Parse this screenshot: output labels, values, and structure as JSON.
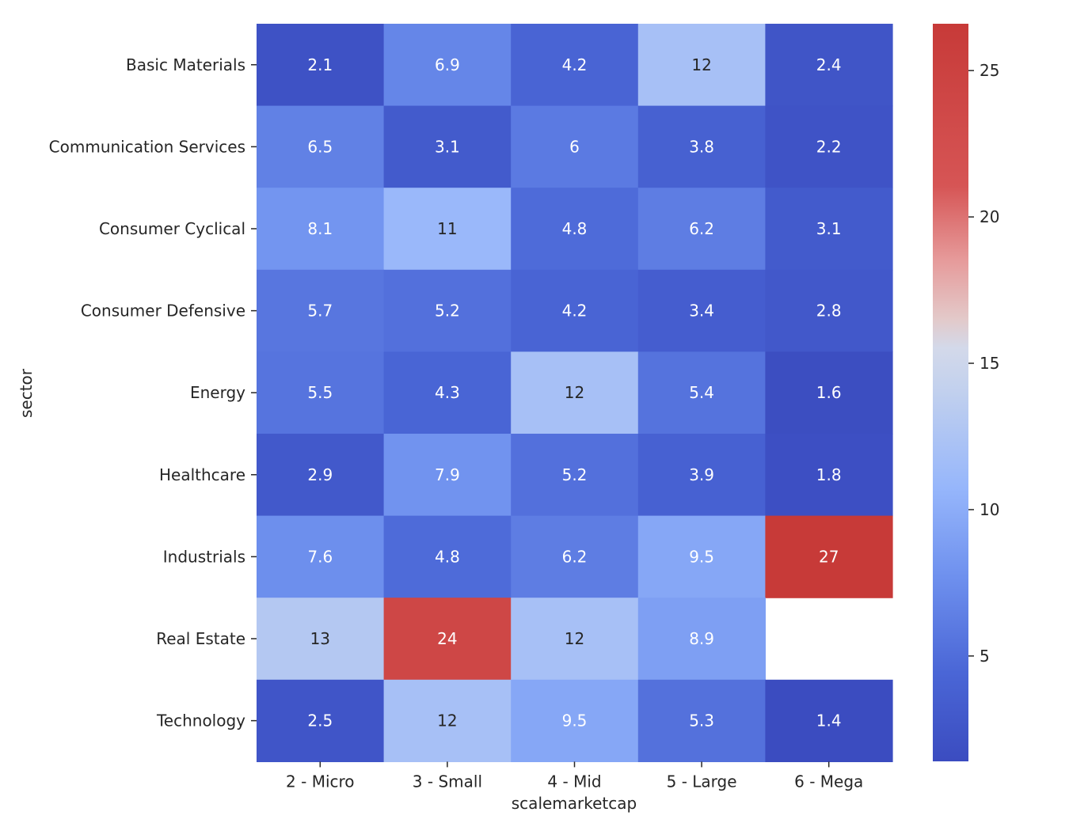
{
  "chart_data": {
    "type": "heatmap",
    "title": "",
    "xlabel": "scalemarketcap",
    "ylabel": "sector",
    "x_categories": [
      "2 - Micro",
      "3 - Small",
      "4 - Mid",
      "5 - Large",
      "6 - Mega"
    ],
    "y_categories": [
      "Basic Materials",
      "Communication Services",
      "Consumer Cyclical",
      "Consumer Defensive",
      "Energy",
      "Healthcare",
      "Industrials",
      "Real Estate",
      "Technology"
    ],
    "values": [
      [
        2.1,
        6.9,
        4.2,
        12,
        2.4
      ],
      [
        6.5,
        3.1,
        6,
        3.8,
        2.2
      ],
      [
        8.1,
        11,
        4.8,
        6.2,
        3.1
      ],
      [
        5.7,
        5.2,
        4.2,
        3.4,
        2.8
      ],
      [
        5.5,
        4.3,
        12,
        5.4,
        1.6
      ],
      [
        2.9,
        7.9,
        5.2,
        3.9,
        1.8
      ],
      [
        7.6,
        4.8,
        6.2,
        9.5,
        27
      ],
      [
        13,
        24,
        12,
        8.9,
        null
      ],
      [
        2.5,
        12,
        9.5,
        5.3,
        1.4
      ]
    ],
    "colorbar": {
      "ticks": [
        5,
        10,
        15,
        20,
        25
      ],
      "tick_labels": [
        "5",
        "10",
        "15",
        "20",
        "25"
      ],
      "range": [
        1.4,
        26.6
      ]
    },
    "colormap": "coolwarm",
    "grid": false,
    "legend": "colorbar right"
  }
}
